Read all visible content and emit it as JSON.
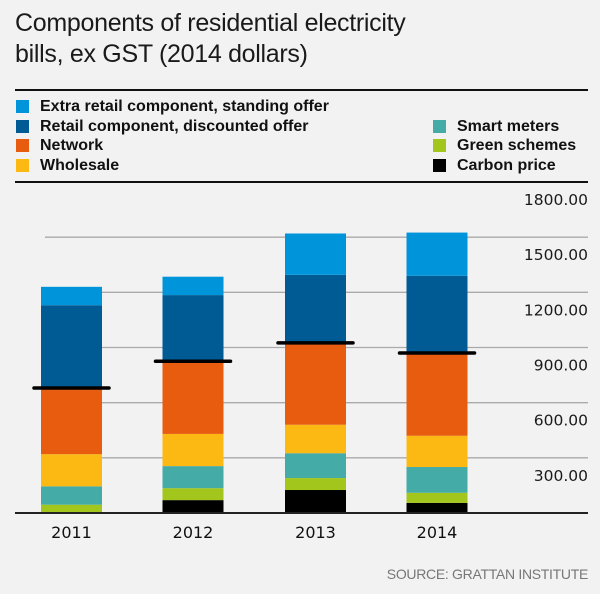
{
  "chart_data": {
    "type": "bar",
    "stacked": true,
    "title": "Components of residential electricity bills, ex GST (2014 dollars)",
    "xlabel": "",
    "ylabel": "",
    "ylim": [
      0,
      1800
    ],
    "yticks": [
      300,
      600,
      900,
      1200,
      1500,
      1800
    ],
    "ytick_labels": [
      "300.00",
      "600.00",
      "900.00",
      "1200.00",
      "1500.00",
      "1800.00"
    ],
    "grid": true,
    "legend_position": "top",
    "categories": [
      "2011",
      "2012",
      "2013",
      "2014"
    ],
    "series": [
      {
        "name": "Carbon price",
        "color": "#000000",
        "values": [
          0,
          70,
          125,
          55
        ]
      },
      {
        "name": "Green schemes",
        "color": "#A3C61C",
        "values": [
          45,
          65,
          65,
          55
        ]
      },
      {
        "name": "Smart meters",
        "color": "#44ABA6",
        "values": [
          100,
          120,
          135,
          140
        ]
      },
      {
        "name": "Wholesale",
        "color": "#FDB913",
        "values": [
          175,
          175,
          155,
          170
        ]
      },
      {
        "name": "Network",
        "color": "#E85C10",
        "values": [
          360,
          390,
          445,
          450
        ]
      },
      {
        "name": "Retail component, discounted offer",
        "color": "#005A94",
        "values": [
          450,
          365,
          370,
          420
        ]
      },
      {
        "name": "Extra retail component, standing offer",
        "color": "#0095DA",
        "values": [
          100,
          100,
          225,
          235
        ]
      }
    ],
    "markers": {
      "description": "black line at top of network component",
      "values": [
        680,
        825,
        925,
        870
      ]
    },
    "source": "SOURCE: GRATTAN INSTITUTE"
  },
  "legend": {
    "left": [
      {
        "label": "Extra retail component, standing offer",
        "color": "#0095DA"
      },
      {
        "label": "Retail component, discounted offer",
        "color": "#005A94"
      },
      {
        "label": "Network",
        "color": "#E85C10"
      },
      {
        "label": "Wholesale",
        "color": "#FDB913"
      }
    ],
    "right": [
      {
        "label": "Smart meters",
        "color": "#44ABA6"
      },
      {
        "label": "Green schemes",
        "color": "#A3C61C"
      },
      {
        "label": "Carbon price",
        "color": "#000000"
      }
    ]
  }
}
